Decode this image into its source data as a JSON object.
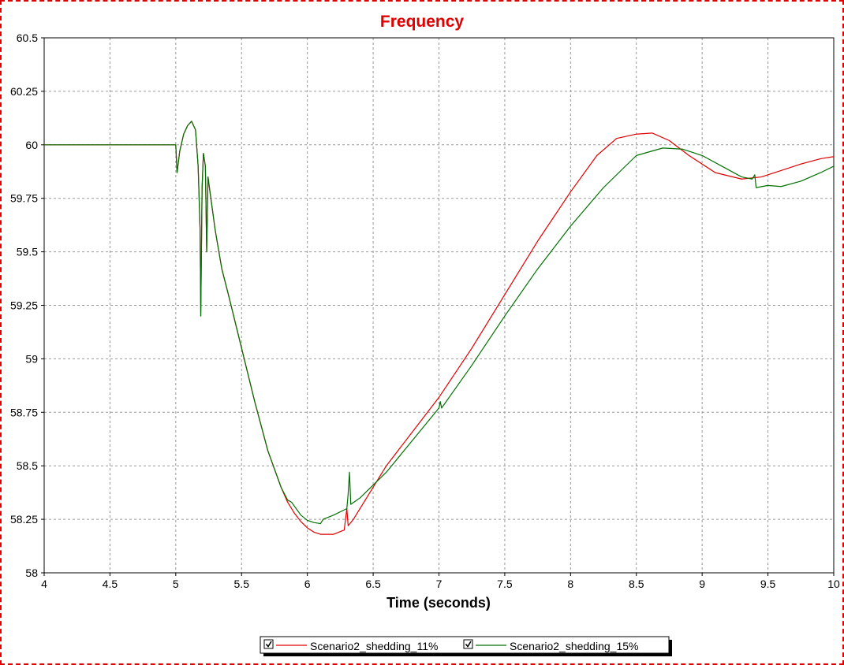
{
  "chart_data": {
    "type": "line",
    "title": "Frequency",
    "title_color": "#e00000",
    "xlabel": "Time (seconds)",
    "ylabel": "",
    "xlim": [
      4,
      10
    ],
    "ylim": [
      58,
      60.5
    ],
    "x_ticks": [
      4,
      4.5,
      5,
      5.5,
      6,
      6.5,
      7,
      7.5,
      8,
      8.5,
      9,
      9.5,
      10
    ],
    "x_tick_labels": [
      "4",
      "4.5",
      "5",
      "5.5",
      "6",
      "6.5",
      "7",
      "7.5",
      "8",
      "8.5",
      "9",
      "9.5",
      "10"
    ],
    "y_ticks": [
      58,
      58.25,
      58.5,
      58.75,
      59,
      59.25,
      59.5,
      59.75,
      60,
      60.25,
      60.5
    ],
    "y_tick_labels": [
      "58",
      "58.25",
      "58.5",
      "58.75",
      "59",
      "59.25",
      "59.5",
      "59.75",
      "60",
      "60.25",
      "60.5"
    ],
    "grid": true,
    "legend_placement": "bottom-center",
    "series": [
      {
        "name": "Scenario2_shedding_11%",
        "color": "#e00000",
        "points": [
          [
            4,
            60
          ],
          [
            5,
            60
          ],
          [
            5.01,
            59.87
          ],
          [
            5.03,
            59.97
          ],
          [
            5.06,
            60.05
          ],
          [
            5.09,
            60.09
          ],
          [
            5.12,
            60.11
          ],
          [
            5.15,
            60.07
          ],
          [
            5.17,
            59.9
          ],
          [
            5.185,
            59.6
          ],
          [
            5.19,
            59.2
          ],
          [
            5.2,
            59.8
          ],
          [
            5.21,
            59.96
          ],
          [
            5.225,
            59.9
          ],
          [
            5.235,
            59.5
          ],
          [
            5.245,
            59.85
          ],
          [
            5.26,
            59.78
          ],
          [
            5.3,
            59.6
          ],
          [
            5.35,
            59.42
          ],
          [
            5.4,
            59.3
          ],
          [
            5.5,
            59.05
          ],
          [
            5.6,
            58.8
          ],
          [
            5.7,
            58.57
          ],
          [
            5.8,
            58.4
          ],
          [
            5.85,
            58.33
          ],
          [
            5.9,
            58.28
          ],
          [
            5.95,
            58.24
          ],
          [
            6,
            58.21
          ],
          [
            6.05,
            58.19
          ],
          [
            6.1,
            58.18
          ],
          [
            6.2,
            58.18
          ],
          [
            6.28,
            58.2
          ],
          [
            6.3,
            58.3
          ],
          [
            6.31,
            58.22
          ],
          [
            6.35,
            58.25
          ],
          [
            6.45,
            58.35
          ],
          [
            6.6,
            58.5
          ],
          [
            6.8,
            58.66
          ],
          [
            7,
            58.82
          ],
          [
            7.25,
            59.05
          ],
          [
            7.5,
            59.3
          ],
          [
            7.75,
            59.55
          ],
          [
            8,
            59.78
          ],
          [
            8.2,
            59.95
          ],
          [
            8.35,
            60.03
          ],
          [
            8.5,
            60.05
          ],
          [
            8.62,
            60.055
          ],
          [
            8.75,
            60.02
          ],
          [
            8.9,
            59.95
          ],
          [
            9.1,
            59.87
          ],
          [
            9.3,
            59.84
          ],
          [
            9.45,
            59.85
          ],
          [
            9.6,
            59.88
          ],
          [
            9.75,
            59.91
          ],
          [
            9.9,
            59.935
          ],
          [
            10,
            59.945
          ]
        ]
      },
      {
        "name": "Scenario2_shedding_15%",
        "color": "#007000",
        "points": [
          [
            4,
            60
          ],
          [
            5,
            60
          ],
          [
            5.01,
            59.87
          ],
          [
            5.03,
            59.97
          ],
          [
            5.06,
            60.05
          ],
          [
            5.09,
            60.09
          ],
          [
            5.12,
            60.11
          ],
          [
            5.15,
            60.07
          ],
          [
            5.17,
            59.9
          ],
          [
            5.185,
            59.6
          ],
          [
            5.19,
            59.2
          ],
          [
            5.2,
            59.8
          ],
          [
            5.21,
            59.96
          ],
          [
            5.225,
            59.9
          ],
          [
            5.235,
            59.5
          ],
          [
            5.245,
            59.85
          ],
          [
            5.26,
            59.78
          ],
          [
            5.3,
            59.6
          ],
          [
            5.35,
            59.42
          ],
          [
            5.4,
            59.3
          ],
          [
            5.5,
            59.05
          ],
          [
            5.6,
            58.8
          ],
          [
            5.7,
            58.57
          ],
          [
            5.8,
            58.4
          ],
          [
            5.85,
            58.34
          ],
          [
            5.88,
            58.33
          ],
          [
            5.95,
            58.27
          ],
          [
            6,
            58.245
          ],
          [
            6.05,
            58.235
          ],
          [
            6.1,
            58.23
          ],
          [
            6.12,
            58.25
          ],
          [
            6.2,
            58.27
          ],
          [
            6.3,
            58.3
          ],
          [
            6.31,
            58.37
          ],
          [
            6.32,
            58.47
          ],
          [
            6.33,
            58.32
          ],
          [
            6.4,
            58.35
          ],
          [
            6.6,
            58.47
          ],
          [
            6.8,
            58.62
          ],
          [
            7,
            58.77
          ],
          [
            7.01,
            58.8
          ],
          [
            7.02,
            58.77
          ],
          [
            7.25,
            58.97
          ],
          [
            7.5,
            59.2
          ],
          [
            7.75,
            59.42
          ],
          [
            8,
            59.62
          ],
          [
            8.25,
            59.8
          ],
          [
            8.5,
            59.95
          ],
          [
            8.7,
            59.985
          ],
          [
            8.85,
            59.98
          ],
          [
            9,
            59.95
          ],
          [
            9.15,
            59.9
          ],
          [
            9.3,
            59.85
          ],
          [
            9.38,
            59.84
          ],
          [
            9.4,
            59.86
          ],
          [
            9.41,
            59.8
          ],
          [
            9.5,
            59.81
          ],
          [
            9.6,
            59.805
          ],
          [
            9.75,
            59.83
          ],
          [
            9.9,
            59.87
          ],
          [
            10,
            59.9
          ]
        ]
      }
    ]
  }
}
